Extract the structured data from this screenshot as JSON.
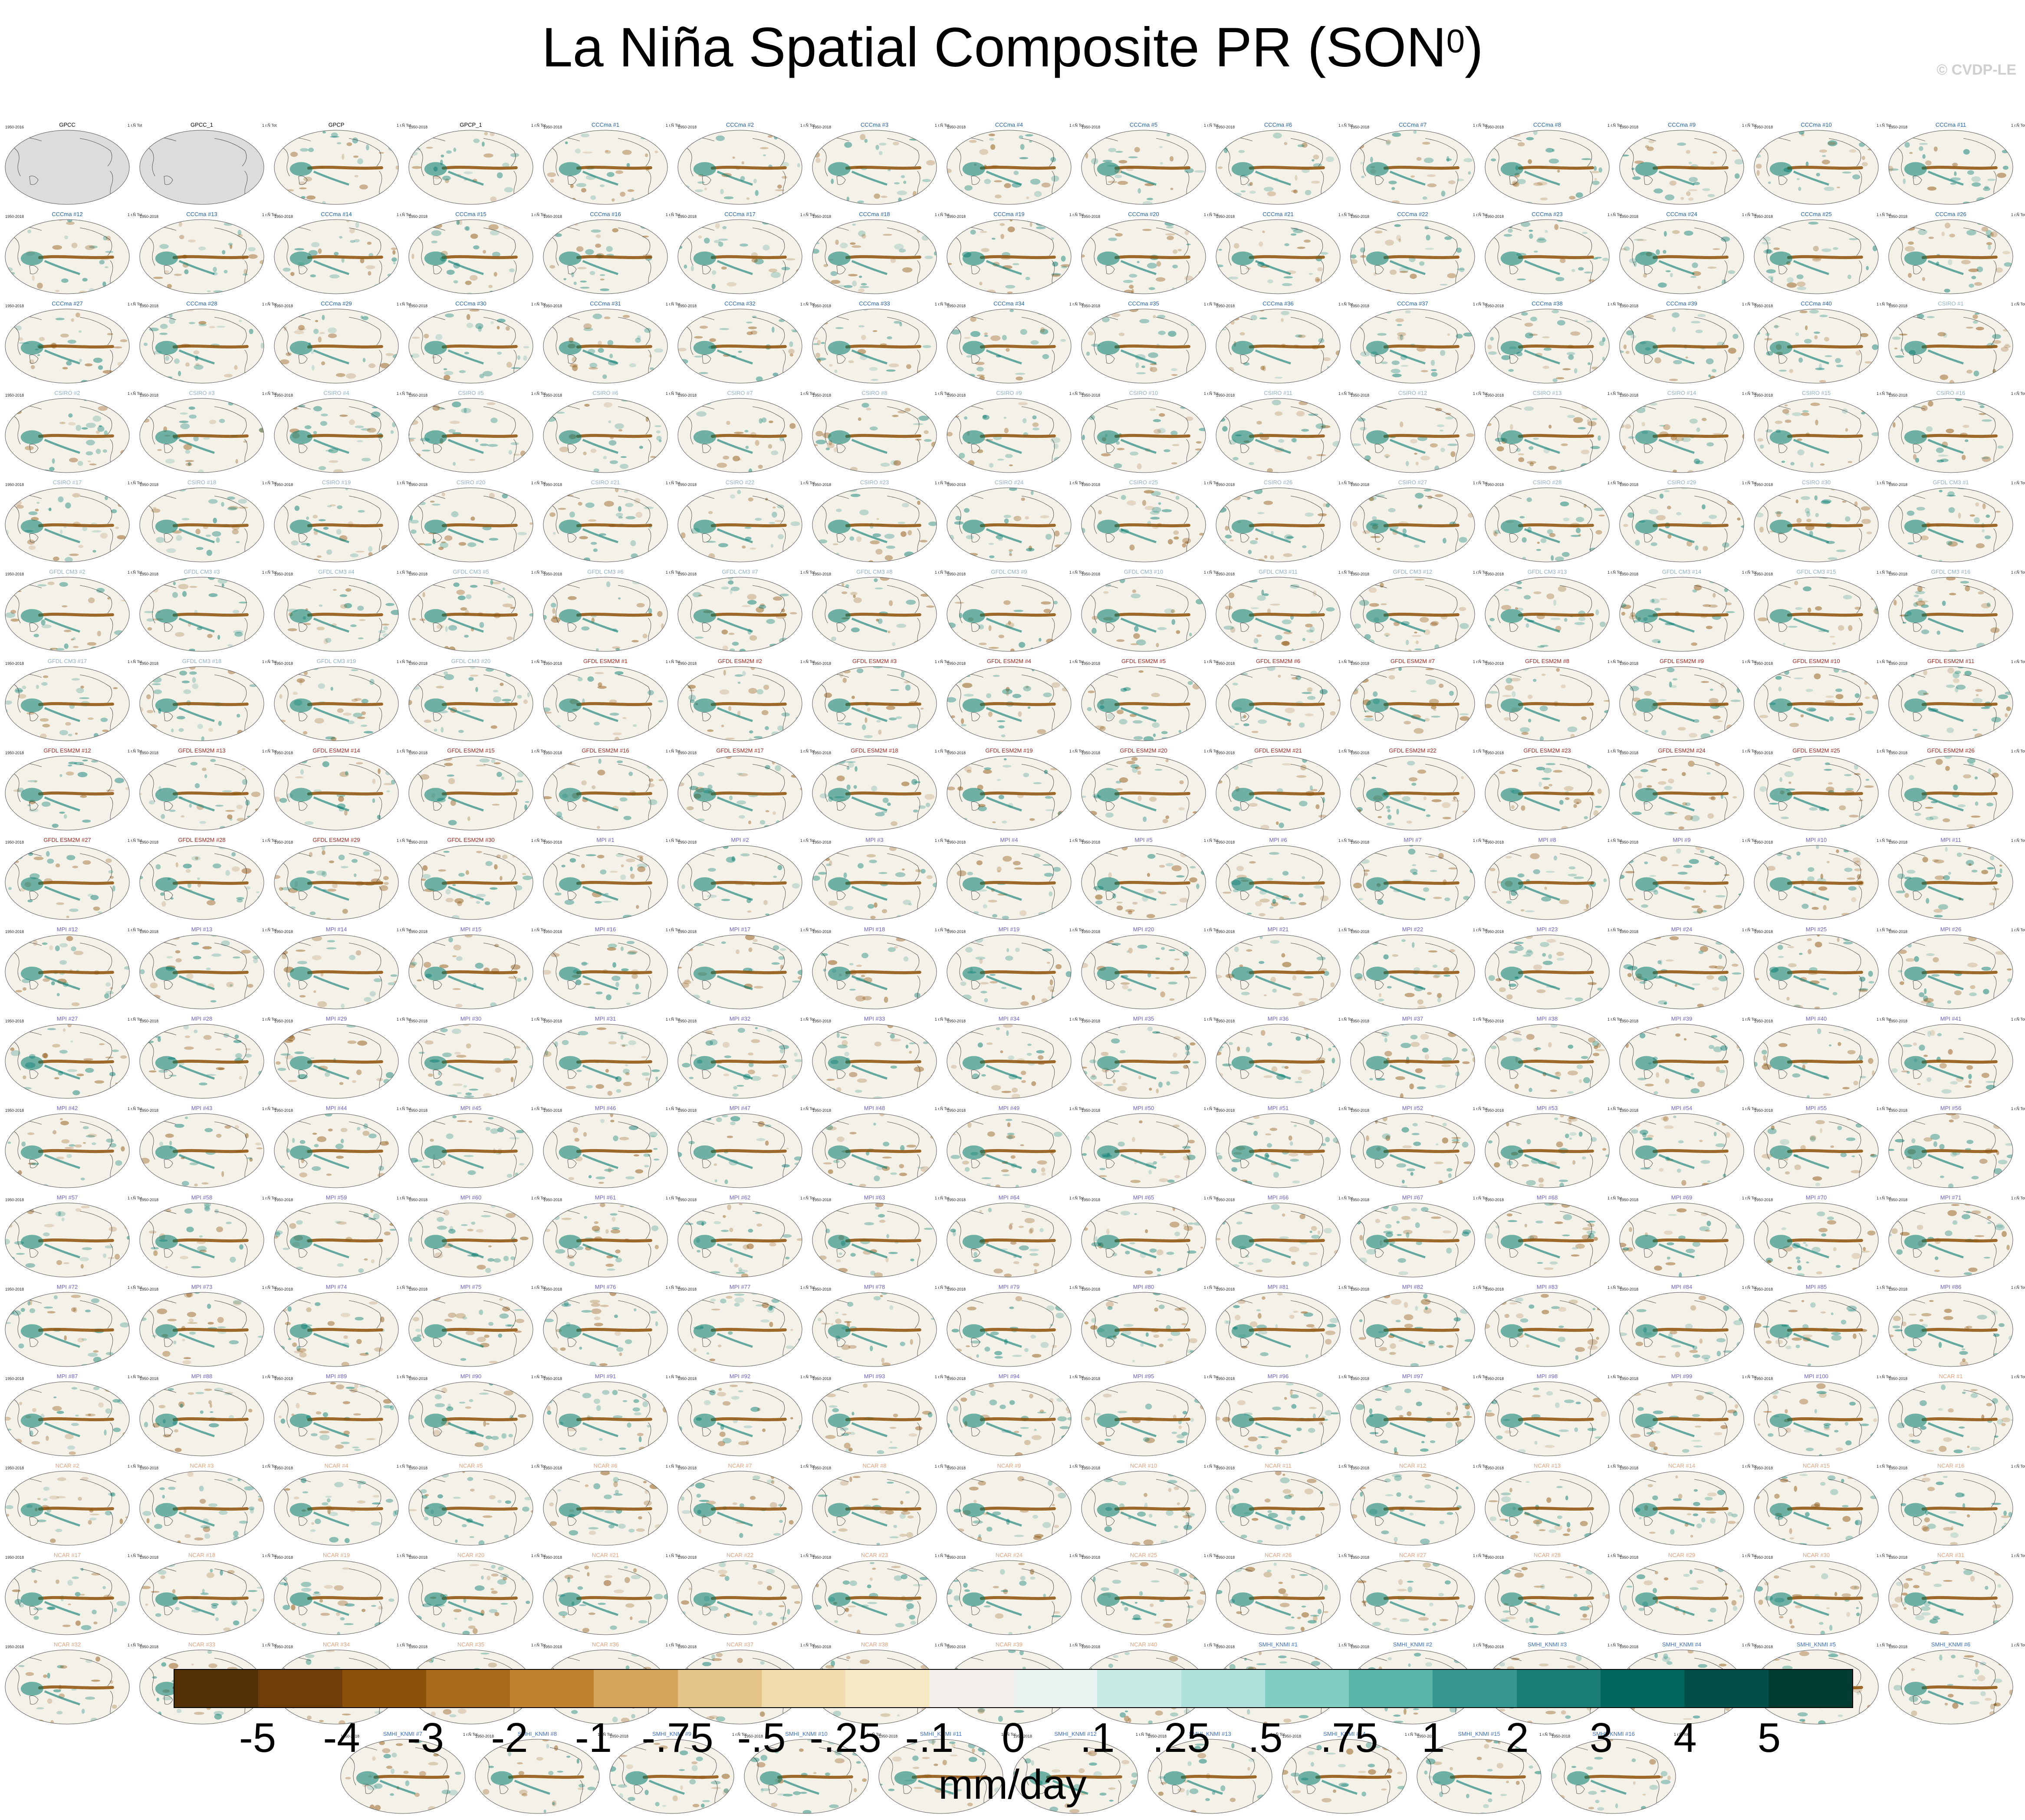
{
  "page": {
    "title_main": "La Niña Spatial Composite PR (SON",
    "title_sup": "0",
    "title_close": ")",
    "watermark": "© CVDP-LE"
  },
  "colors": {
    "map_fill": "#f4f1e8",
    "land_missing": "#dcdcdc",
    "dry": "#8c5109",
    "wet": "#017a6e",
    "coast": "#333333",
    "title_obs": "#000000",
    "title_canesm": "#1f5fa8",
    "title_csiro": "#8fb0c8",
    "title_gfdl_cm3": "#8fb0c8",
    "title_gfdl_esm2m": "#a4261b",
    "title_mpi": "#6b5fd0",
    "title_ncar": "#e3a07a",
    "title_smhi": "#3a6ec8"
  },
  "chart_data": {
    "type": "map-grid",
    "title": "La Niña Spatial Composite PR (SON0)",
    "variable": "PR",
    "season": "SON",
    "units": "mm/day",
    "colorbar": {
      "levels": [
        "-5",
        "-4",
        "-3",
        "-2",
        "-1",
        "-.75",
        "-.5",
        "-.25",
        "-.1",
        "0",
        ".1",
        ".25",
        ".5",
        ".75",
        "1",
        "2",
        "3",
        "4",
        "5"
      ],
      "colors": [
        "#543005",
        "#6f3d08",
        "#8c5109",
        "#a8691c",
        "#bf812d",
        "#d4a45a",
        "#e3c386",
        "#f0dcaa",
        "#f6e8c3",
        "#f4efea",
        "#eaf3f2",
        "#c7eae5",
        "#ace0d8",
        "#80cdc1",
        "#5ab4a8",
        "#35978f",
        "#1b7f77",
        "#01665e",
        "#014f46",
        "#003c30"
      ]
    },
    "panels": [
      {
        "title": "GPCC",
        "group": "obs",
        "period": "1950-2016",
        "ensemble_mean": false
      },
      {
        "title": "GPCC_1",
        "group": "obs",
        "period": "",
        "ensemble_mean": false
      },
      {
        "title": "GPCP",
        "group": "obs",
        "period": "",
        "ensemble_mean": true
      },
      {
        "title": "GPCP_1",
        "group": "obs",
        "period": "1950-2018",
        "ensemble_mean": true
      }
    ],
    "model_groups": [
      {
        "name": "CCCma",
        "count": 40,
        "color_key": "title_canesm"
      },
      {
        "name": "CSIRO",
        "count": 30,
        "color_key": "title_csiro"
      },
      {
        "name": "GFDL CM3",
        "count": 20,
        "color_key": "title_gfdl_cm3"
      },
      {
        "name": "GFDL ESM2M",
        "count": 30,
        "color_key": "title_gfdl_esm2m"
      },
      {
        "name": "MPI",
        "count": 100,
        "color_key": "title_mpi"
      },
      {
        "name": "NCAR",
        "count": 40,
        "color_key": "title_ncar"
      },
      {
        "name": "SMHI_KNMI",
        "count": 16,
        "color_key": "title_smhi"
      }
    ],
    "panel_period_label": "1950-2018",
    "panel_stat_label": "1 r.Ñ Tot"
  }
}
